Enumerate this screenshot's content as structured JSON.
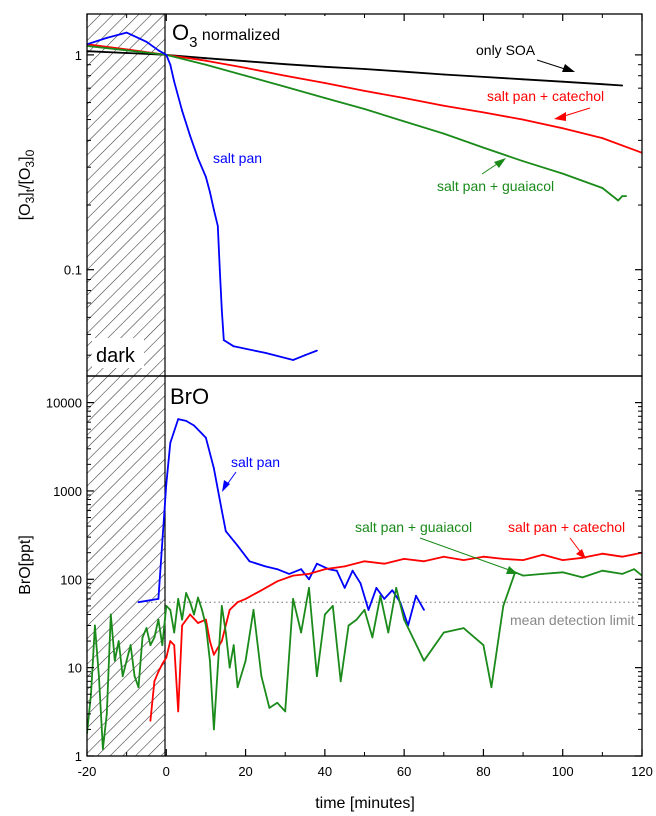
{
  "chart_data": [
    {
      "type": "line",
      "panel": "top",
      "title_main": "O",
      "title_sub": "3",
      "title_rest": " normalized",
      "ylabel": {
        "parts": [
          "[O",
          "3",
          "]",
          "t",
          "/[O",
          "3",
          "]",
          "0"
        ],
        "sub": [
          false,
          true,
          false,
          true,
          false,
          true,
          false,
          true
        ]
      },
      "yscale": "log",
      "ylim": [
        0.032,
        1.55
      ],
      "xlim": [
        -20,
        120
      ],
      "yticks": [
        {
          "value": 1,
          "label": "1"
        },
        {
          "value": 0.1,
          "label": "0.1"
        }
      ],
      "shaded_region": {
        "x": [
          -20,
          0
        ],
        "label": "dark"
      },
      "series": [
        {
          "name": "only SOA",
          "color": "#000000",
          "x": [
            -20,
            -10,
            0,
            10,
            20,
            30,
            40,
            50,
            60,
            70,
            80,
            90,
            100,
            110,
            115
          ],
          "y": [
            1.04,
            1.02,
            1.0,
            0.965,
            0.935,
            0.905,
            0.88,
            0.86,
            0.835,
            0.81,
            0.79,
            0.77,
            0.75,
            0.73,
            0.72
          ]
        },
        {
          "name": "salt pan + catechol",
          "color": "#ff0000",
          "x": [
            -20,
            -10,
            0,
            10,
            20,
            30,
            40,
            50,
            60,
            70,
            80,
            90,
            100,
            110,
            120
          ],
          "y": [
            1.12,
            1.06,
            1.0,
            0.94,
            0.87,
            0.8,
            0.74,
            0.68,
            0.63,
            0.58,
            0.54,
            0.5,
            0.455,
            0.41,
            0.35
          ]
        },
        {
          "name": "salt pan + guaiacol",
          "color": "#1a8a1a",
          "x": [
            -20,
            -10,
            0,
            10,
            20,
            30,
            40,
            50,
            60,
            70,
            80,
            90,
            100,
            110,
            114,
            115,
            116
          ],
          "y": [
            1.1,
            1.05,
            1.0,
            0.9,
            0.8,
            0.71,
            0.63,
            0.56,
            0.49,
            0.43,
            0.37,
            0.32,
            0.28,
            0.24,
            0.21,
            0.22,
            0.22
          ]
        },
        {
          "name": "salt pan",
          "color": "#0000ff",
          "x": [
            -20,
            -15,
            -10,
            -5,
            -2,
            0,
            1,
            2,
            4,
            6,
            8,
            10,
            11,
            12,
            13,
            13.5,
            14,
            14.5,
            17,
            25,
            32,
            35,
            38
          ],
          "y": [
            1.12,
            1.2,
            1.27,
            1.15,
            1.05,
            1.0,
            0.9,
            0.75,
            0.55,
            0.42,
            0.33,
            0.27,
            0.23,
            0.19,
            0.16,
            0.1,
            0.065,
            0.047,
            0.044,
            0.041,
            0.038,
            0.04,
            0.042
          ]
        }
      ],
      "annotations": [
        {
          "text": "only SOA",
          "color": "#000000"
        },
        {
          "text": "salt pan + catechol",
          "color": "#ff0000"
        },
        {
          "text": "salt pan + guaiacol",
          "color": "#1a8a1a"
        },
        {
          "text": "salt pan",
          "color": "#0000ff"
        }
      ]
    },
    {
      "type": "line",
      "panel": "bottom",
      "title": "BrO",
      "ylabel": "BrO[ppt]",
      "xlabel": "time [minutes]",
      "yscale": "log",
      "ylim": [
        1,
        20000
      ],
      "xlim": [
        -20,
        120
      ],
      "xticks": [
        -20,
        0,
        20,
        40,
        60,
        80,
        100,
        120
      ],
      "yticks": [
        {
          "value": 1,
          "label": "1"
        },
        {
          "value": 10,
          "label": "10"
        },
        {
          "value": 100,
          "label": "100"
        },
        {
          "value": 1000,
          "label": "1000"
        },
        {
          "value": 10000,
          "label": "10000"
        }
      ],
      "shaded_region": {
        "x": [
          -20,
          0
        ]
      },
      "reference_line": {
        "y": 55,
        "x": [
          -5,
          120
        ],
        "label": "mean detection limit",
        "color": "#888888"
      },
      "series": [
        {
          "name": "salt pan",
          "color": "#0000ff",
          "x": [
            -7,
            -2,
            0,
            1,
            3,
            5,
            7,
            10,
            12,
            14,
            15,
            18,
            21,
            25,
            28,
            31,
            34,
            36,
            38,
            41,
            43,
            45,
            47,
            49,
            51,
            53,
            55,
            57,
            59,
            61,
            63,
            65
          ],
          "y": [
            55,
            60,
            1200,
            3500,
            6500,
            6200,
            5500,
            4000,
            1800,
            600,
            350,
            240,
            160,
            140,
            130,
            115,
            130,
            100,
            150,
            130,
            125,
            80,
            125,
            90,
            45,
            80,
            60,
            75,
            55,
            30,
            65,
            45
          ]
        },
        {
          "name": "salt pan + catechol",
          "color": "#ff0000",
          "x": [
            -4,
            -3,
            -2,
            -1,
            0,
            1,
            2,
            3,
            4,
            6,
            8,
            10,
            11,
            12,
            14,
            16,
            18,
            20,
            24,
            28,
            32,
            36,
            40,
            45,
            50,
            55,
            60,
            65,
            70,
            75,
            80,
            85,
            90,
            95,
            100,
            105,
            110,
            115,
            120
          ],
          "y": [
            2.5,
            7,
            9,
            11,
            13,
            20,
            18,
            3.2,
            30,
            40,
            32,
            35,
            20,
            14,
            20,
            45,
            55,
            60,
            75,
            95,
            110,
            115,
            130,
            140,
            160,
            150,
            170,
            160,
            180,
            165,
            180,
            170,
            165,
            190,
            165,
            175,
            195,
            180,
            200
          ]
        },
        {
          "name": "salt pan + guaiacol",
          "color": "#1a8a1a",
          "x": [
            -20,
            -19,
            -18,
            -17,
            -16,
            -15,
            -14,
            -13,
            -12,
            -11,
            -10,
            -9,
            -8,
            -7,
            -6,
            -5,
            -4,
            -3,
            -2,
            -1,
            0,
            1,
            2,
            3,
            4,
            5,
            6,
            7,
            8,
            9,
            10,
            11,
            12,
            13,
            14,
            15,
            16,
            17,
            18,
            20,
            22,
            24,
            26,
            28,
            30,
            32,
            34,
            36,
            38,
            40,
            42,
            44,
            46,
            48,
            50,
            52,
            54,
            56,
            58,
            60,
            65,
            70,
            75,
            80,
            82,
            85,
            88,
            90,
            95,
            100,
            105,
            110,
            115,
            118,
            120
          ],
          "y": [
            1.8,
            5,
            30,
            8,
            1.2,
            3,
            40,
            12,
            20,
            8,
            12,
            18,
            8,
            6,
            22,
            28,
            18,
            22,
            35,
            18,
            50,
            45,
            25,
            60,
            35,
            70,
            55,
            40,
            62,
            45,
            30,
            12,
            2,
            10,
            50,
            25,
            10,
            18,
            6,
            12,
            45,
            8,
            3.5,
            4,
            3.2,
            60,
            25,
            80,
            8,
            40,
            50,
            7,
            30,
            35,
            45,
            22,
            65,
            25,
            80,
            35,
            12,
            25,
            28,
            18,
            6,
            50,
            120,
            110,
            115,
            120,
            105,
            125,
            115,
            130,
            110
          ]
        }
      ],
      "annotations": [
        {
          "text": "salt pan",
          "color": "#0000ff"
        },
        {
          "text": "salt pan + guaiacol",
          "color": "#1a8a1a"
        },
        {
          "text": "salt pan + catechol",
          "color": "#ff0000"
        },
        {
          "text": "mean detection limit",
          "color": "#888888"
        }
      ]
    }
  ]
}
